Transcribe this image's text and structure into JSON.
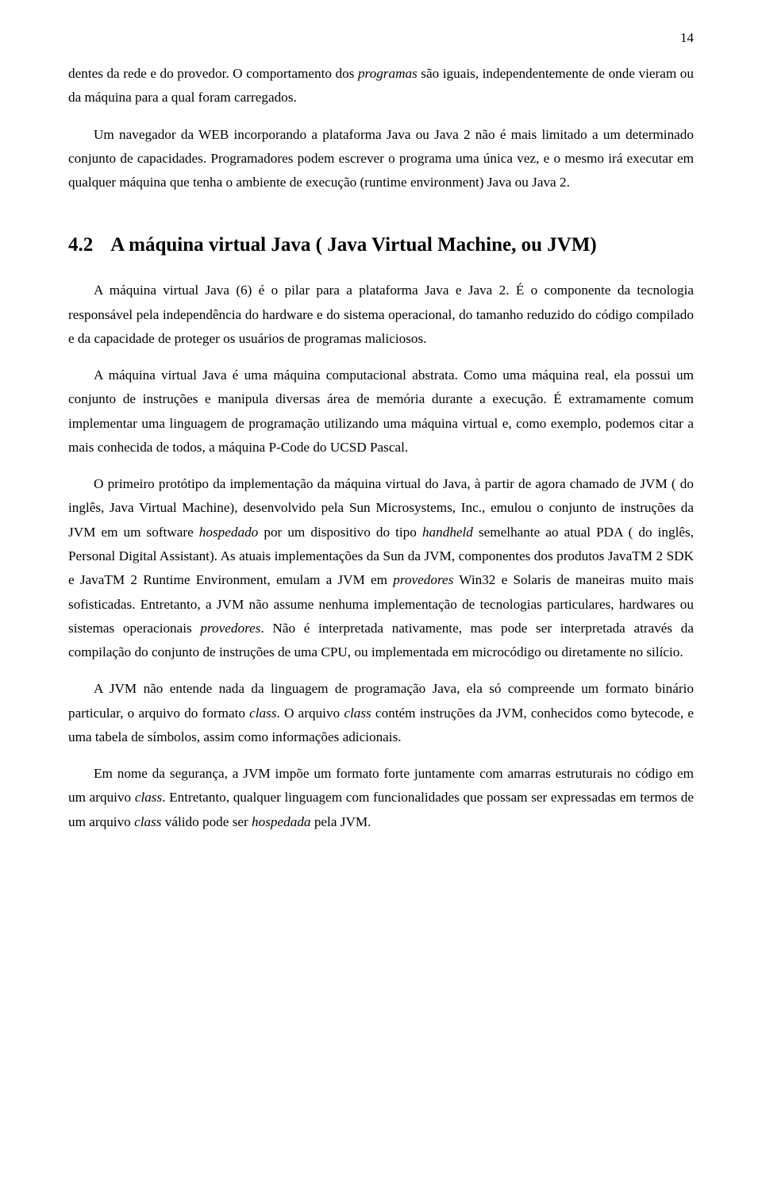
{
  "pageNumber": "14",
  "paragraphs": {
    "p1_part1": "dentes da rede e do provedor. O comportamento dos ",
    "p1_em1": "programas",
    "p1_part2": " são iguais, independentemente de onde vieram ou da máquina para a qual foram carregados.",
    "p2": "Um navegador da WEB incorporando a plataforma Java ou Java 2 não é mais limitado a um determinado conjunto de capacidades. Programadores podem escrever o programa uma única vez, e o mesmo irá executar em qualquer máquina que tenha o ambiente de execução (runtime environment) Java ou Java 2."
  },
  "heading": {
    "number": "4.2",
    "title": "A máquina virtual Java ( Java Virtual Machine, ou JVM)"
  },
  "section": {
    "p3": "A máquina virtual Java (6) é o pilar para a plataforma Java e Java 2. É o componente da tecnologia responsável pela independência do hardware e do sistema operacional, do tamanho reduzido do código compilado e da capacidade de proteger os usuários de programas maliciosos.",
    "p4": "A máquina virtual Java é uma máquina computacional abstrata. Como uma máquina real, ela possui um conjunto de instruções e manipula diversas área de memória durante a execução. É extramamente comum implementar uma linguagem de programação utilizando uma máquina virtual e, como exemplo, podemos citar a mais conhecida de todos, a máquina P-Code do UCSD Pascal.",
    "p5_a": "O primeiro protótipo da implementação da máquina virtual do Java, à partir de agora chamado de JVM ( do inglês, Java Virtual Machine), desenvolvido pela Sun Microsystems, Inc., emulou o conjunto de instruções da JVM em um software ",
    "p5_em1": "hospedado",
    "p5_b": " por um dispositivo do tipo ",
    "p5_em2": "handheld",
    "p5_c": " semelhante ao atual PDA ( do inglês, Personal Digital Assistant). As atuais implementações da Sun da JVM, componentes dos produtos JavaTM 2 SDK e JavaTM 2 Runtime Environment, emulam a JVM em ",
    "p5_em3": "provedores",
    "p5_d": " Win32 e Solaris de maneiras muito mais sofisticadas. Entretanto, a JVM não assume nenhuma implementação de tecnologias particulares, hardwares ou sistemas operacionais ",
    "p5_em4": "provedores",
    "p5_e": ". Não é interpretada nativamente, mas pode ser interpretada através da compilação do conjunto de instruções de uma CPU, ou implementada em microcódigo ou diretamente no silício.",
    "p6_a": "A JVM não entende nada da linguagem de programação Java, ela só compreende um formato binário particular, o arquivo do formato ",
    "p6_em1": "class",
    "p6_b": ". O arquivo ",
    "p6_em2": "class",
    "p6_c": " contém instruções da JVM, conhecidos como bytecode, e uma tabela de símbolos, assim como informações adicionais.",
    "p7_a": "Em nome da segurança, a JVM impõe um formato forte juntamente com amarras estruturais no código em um arquivo ",
    "p7_em1": "class",
    "p7_b": ". Entretanto, qualquer linguagem com funcionalidades que possam ser expressadas em termos de um arquivo ",
    "p7_em2": "class",
    "p7_c": " válido pode ser ",
    "p7_em3": "hospedada",
    "p7_d": " pela JVM."
  }
}
